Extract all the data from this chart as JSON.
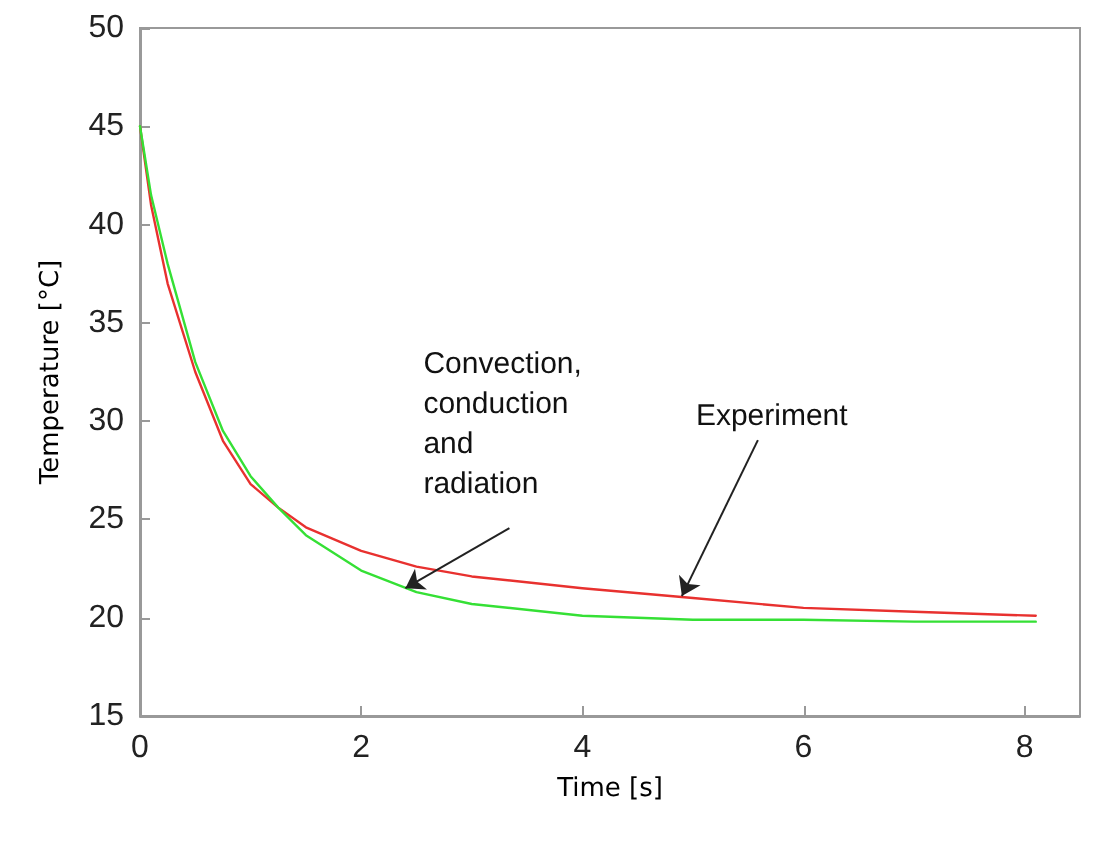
{
  "chart_data": {
    "type": "line",
    "xlabel": "Time [s]",
    "ylabel": "Temperature [°C]",
    "xlim": [
      0,
      8.5
    ],
    "xticks": [
      0,
      2,
      4,
      6,
      8
    ],
    "ylim": [
      15,
      50
    ],
    "yticks": [
      15,
      20,
      25,
      30,
      35,
      40,
      45,
      50
    ],
    "grid": false,
    "marker": "none",
    "line_style": "solid",
    "series": [
      {
        "color": "#e8312f",
        "x": [
          0,
          0.1,
          0.25,
          0.5,
          0.75,
          1,
          1.25,
          1.5,
          2,
          2.5,
          3,
          4,
          5,
          6,
          7,
          8.1
        ],
        "values": [
          45,
          41,
          37,
          32.5,
          29,
          26.8,
          25.6,
          24.6,
          23.4,
          22.6,
          22.1,
          21.5,
          21,
          20.5,
          20.3,
          20.1
        ]
      },
      {
        "color": "#35e035",
        "x": [
          0,
          0.1,
          0.25,
          0.5,
          0.75,
          1,
          1.25,
          1.5,
          2,
          2.5,
          3,
          4,
          5,
          6,
          7,
          8.1
        ],
        "values": [
          45,
          41.5,
          38,
          33,
          29.5,
          27.2,
          25.6,
          24.2,
          22.4,
          21.3,
          20.7,
          20.1,
          19.9,
          19.9,
          19.8,
          19.8
        ]
      }
    ],
    "annotations": [
      {
        "text": "Convection,\nconduction\nand\nradiation",
        "x": 2.4,
        "y": 21.5
      },
      {
        "text": "Experiment",
        "x": 4.9,
        "y": 21.1
      }
    ]
  }
}
